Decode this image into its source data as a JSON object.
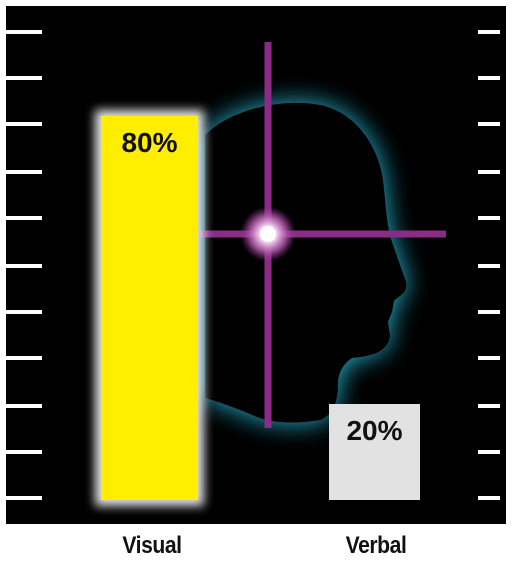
{
  "chart_data": {
    "type": "bar",
    "categories": [
      "Visual",
      "Verbal"
    ],
    "values": [
      80,
      20
    ],
    "value_labels": [
      "80%",
      "20%"
    ],
    "ylim": [
      0,
      100
    ],
    "grid": false,
    "title": "",
    "xlabel": "",
    "ylabel": ""
  },
  "colors": {
    "background": "#000000",
    "visual_bar": "#ffee00",
    "verbal_bar": "#e2e2e2",
    "head_glow": "#2bc4e4",
    "crosshair": "#8a2c86",
    "ticks": "#ffffff",
    "label_text": "#111111"
  },
  "decorations": {
    "head_icon": "head-silhouette-icon",
    "crosshair_icon": "crosshair-icon"
  }
}
